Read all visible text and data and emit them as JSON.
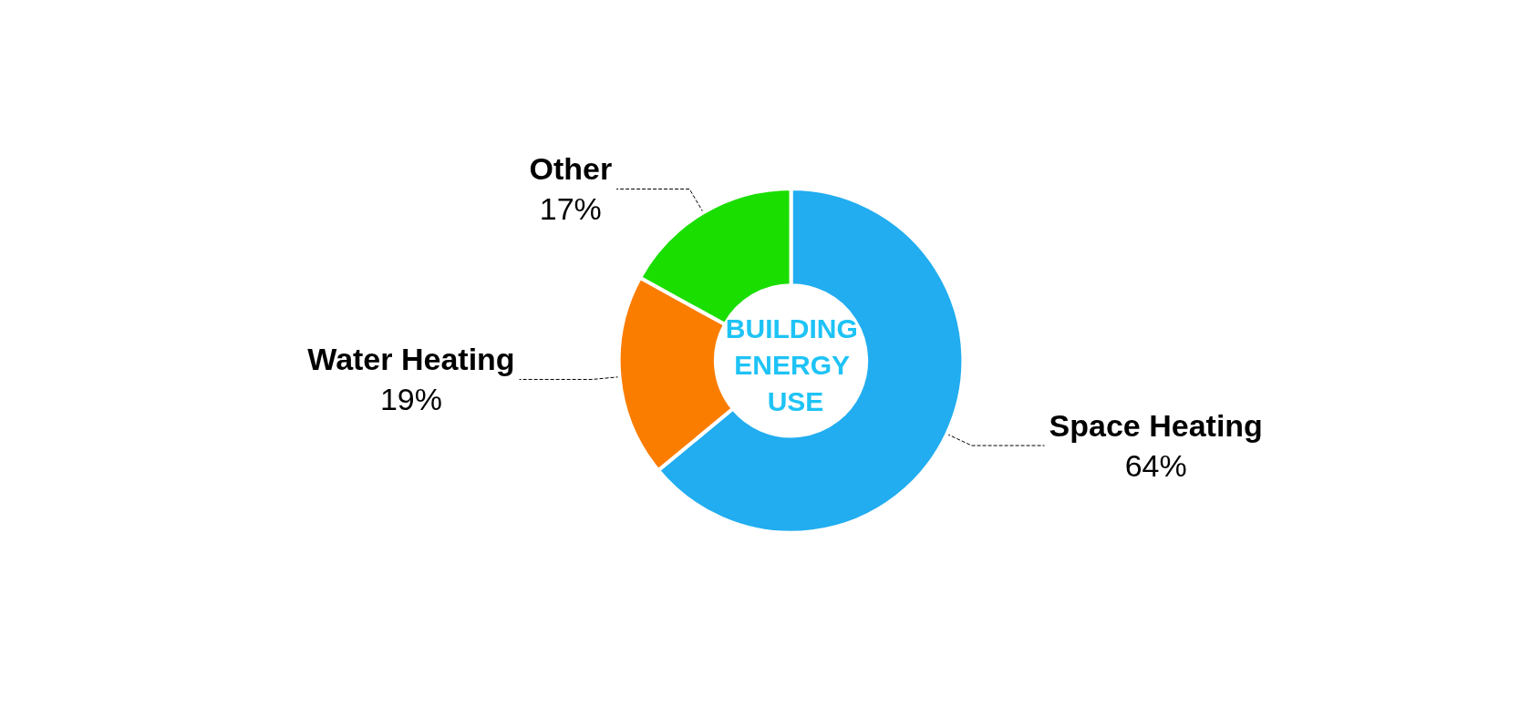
{
  "chart_data": {
    "type": "donut",
    "title": "BUILDING ENERGY USE",
    "categories": [
      "Space Heating",
      "Water Heating",
      "Other"
    ],
    "values": [
      64,
      19,
      17
    ],
    "value_labels": [
      "64%",
      "19%",
      "17%"
    ],
    "colors": [
      "#21adf0",
      "#fb7d00",
      "#1ade00"
    ],
    "legend": false
  }
}
